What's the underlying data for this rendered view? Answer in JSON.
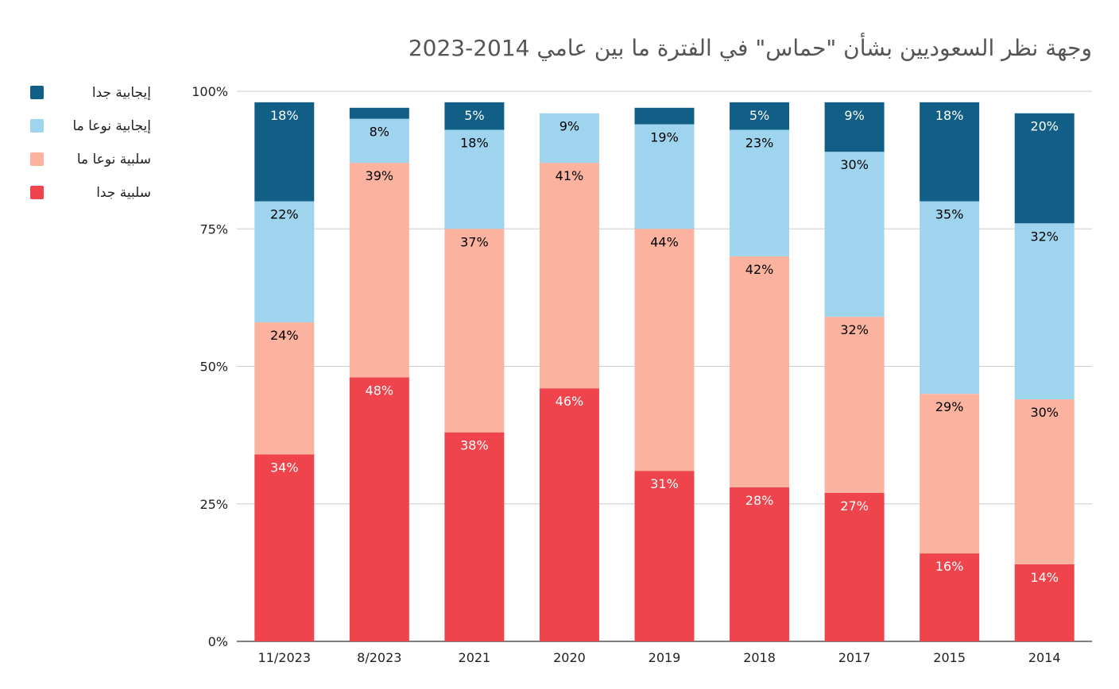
{
  "chart_data": {
    "type": "bar",
    "stacked": true,
    "title": "وجهة نظر السعوديين بشأن \"حماس\" في الفترة ما بين عامي 2014-2023",
    "categories": [
      "11/2023",
      "8/2023",
      "2021",
      "2020",
      "2019",
      "2018",
      "2017",
      "2015",
      "2014"
    ],
    "series": [
      {
        "name": "سلبية جدا",
        "color": "#ef444b",
        "label_color": "#ffffff",
        "values": [
          34,
          48,
          38,
          46,
          31,
          28,
          27,
          16,
          14
        ],
        "labels": [
          "34%",
          "48%",
          "38%",
          "46%",
          "31%",
          "28%",
          "27%",
          "16%",
          "14%"
        ]
      },
      {
        "name": "سلبية نوعا ما",
        "color": "#fbb3a0",
        "label_color": "#000000",
        "values": [
          24,
          39,
          37,
          41,
          44,
          42,
          32,
          29,
          30
        ],
        "labels": [
          "24%",
          "39%",
          "37%",
          "41%",
          "44%",
          "42%",
          "32%",
          "29%",
          "30%"
        ]
      },
      {
        "name": "إيجابية نوعا ما",
        "color": "#9fd4ef",
        "label_color": "#000000",
        "values": [
          22,
          8,
          18,
          9,
          19,
          23,
          30,
          35,
          32
        ],
        "labels": [
          "22%",
          "8%",
          "18%",
          "9%",
          "19%",
          "23%",
          "30%",
          "35%",
          "32%"
        ]
      },
      {
        "name": "إيجابية جدا",
        "color": "#115e86",
        "label_color": "#ffffff",
        "values": [
          18,
          2,
          5,
          0,
          3,
          5,
          9,
          18,
          20
        ],
        "labels": [
          "18%",
          "",
          "5%",
          "",
          "",
          "5%",
          "9%",
          "18%",
          "20%"
        ]
      }
    ],
    "y_ticks": [
      "0%",
      "25%",
      "50%",
      "75%",
      "100%"
    ],
    "ylim": [
      0,
      100
    ],
    "grid": true,
    "legend_position": "top-left",
    "legend_order": [
      "إيجابية جدا",
      "إيجابية نوعا ما",
      "سلبية نوعا ما",
      "سلبية جدا"
    ]
  }
}
